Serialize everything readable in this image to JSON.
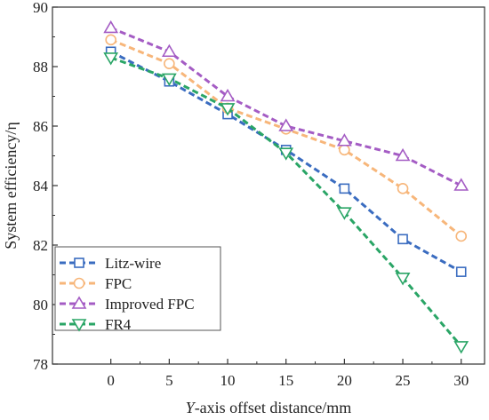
{
  "chart_data": {
    "type": "line",
    "x": [
      0,
      5,
      10,
      15,
      20,
      25,
      30
    ],
    "xlabel_italic": "Y",
    "xlabel_rest": "-axis offset distance/mm",
    "ylabel": "System efficiency/η",
    "xlim": [
      -5,
      32
    ],
    "ylim": [
      78,
      90
    ],
    "xticks": [
      0,
      5,
      10,
      15,
      20,
      25,
      30
    ],
    "yticks": [
      78,
      80,
      82,
      84,
      86,
      88,
      90
    ],
    "grid": false,
    "legend_position": "bottom-left",
    "series": [
      {
        "name": "Litz-wire",
        "color": "#3a6cc0",
        "marker": "square",
        "values": [
          88.5,
          87.5,
          86.4,
          85.2,
          83.9,
          82.2,
          81.1
        ]
      },
      {
        "name": "FPC",
        "color": "#f7b67a",
        "marker": "circle",
        "values": [
          88.9,
          88.1,
          86.6,
          85.9,
          85.2,
          83.9,
          82.3
        ]
      },
      {
        "name": "Improved FPC",
        "color": "#a45cc4",
        "marker": "triangle-up",
        "values": [
          89.3,
          88.5,
          87.0,
          86.0,
          85.5,
          85.0,
          84.0
        ]
      },
      {
        "name": "FR4",
        "color": "#2aa566",
        "marker": "triangle-down",
        "values": [
          88.3,
          87.6,
          86.6,
          85.1,
          83.1,
          80.9,
          78.6
        ]
      }
    ]
  }
}
